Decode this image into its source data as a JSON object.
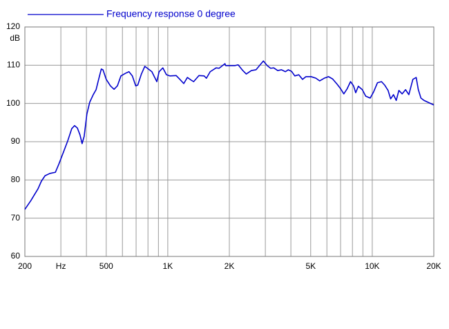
{
  "chart_data": {
    "type": "line",
    "y_label": "dB",
    "xscale": "log",
    "grid": true,
    "xlim": [
      200,
      20000
    ],
    "ylim": [
      60,
      120
    ],
    "yticks": [
      60,
      70,
      80,
      90,
      100,
      110,
      120
    ],
    "xticks": [
      200,
      {
        "value": 300,
        "label": "Hz"
      },
      500,
      {
        "value": 1000,
        "label": "1K"
      },
      {
        "value": 2000,
        "label": "2K"
      },
      {
        "value": 5000,
        "label": "5K"
      },
      {
        "value": 10000,
        "label": "10K"
      },
      {
        "value": 20000,
        "label": "20K"
      }
    ],
    "xgrid": [
      200,
      300,
      400,
      500,
      600,
      700,
      800,
      900,
      1000,
      2000,
      3000,
      4000,
      5000,
      6000,
      7000,
      8000,
      9000,
      10000,
      20000
    ],
    "series": [
      {
        "name": "Frequency response 0 degree",
        "color": "#0000cc",
        "x": [
          200,
          214,
          232,
          241,
          251,
          265,
          282,
          293,
          309,
          324,
          339,
          350,
          361,
          372,
          381,
          390,
          402,
          415,
          432,
          446,
          459,
          473,
          482,
          500,
          524,
          546,
          567,
          590,
          622,
          646,
          671,
          697,
          713,
          743,
          772,
          804,
          836,
          863,
          884,
          907,
          946,
          985,
          1026,
          1099,
          1146,
          1197,
          1247,
          1301,
          1338,
          1421,
          1505,
          1545,
          1612,
          1723,
          1782,
          1904,
          1919,
          2133,
          2208,
          2328,
          2420,
          2565,
          2700,
          2860,
          2935,
          3063,
          3182,
          3298,
          3447,
          3600,
          3760,
          3885,
          4030,
          4180,
          4370,
          4560,
          4740,
          5030,
          5300,
          5530,
          5820,
          6120,
          6400,
          6740,
          6990,
          7260,
          7530,
          7830,
          8100,
          8300,
          8550,
          8940,
          9290,
          9770,
          10150,
          10600,
          11100,
          11500,
          11950,
          12300,
          12700,
          13100,
          13500,
          14000,
          14550,
          15100,
          15800,
          16400,
          16800,
          17300,
          17900,
          20000
        ],
        "values": [
          72.3,
          74.6,
          77.7,
          79.7,
          81.1,
          81.7,
          82.0,
          84.1,
          87.3,
          90.2,
          93.4,
          94.2,
          93.6,
          91.8,
          89.5,
          91.4,
          97.2,
          100.3,
          102.3,
          103.6,
          106.3,
          109.0,
          108.8,
          106.3,
          104.6,
          103.7,
          104.6,
          107.2,
          107.9,
          108.3,
          107.2,
          104.6,
          104.8,
          107.7,
          109.7,
          109.0,
          108.3,
          106.8,
          105.7,
          108.3,
          109.3,
          107.5,
          107.2,
          107.3,
          106.3,
          105.2,
          106.8,
          106.1,
          105.7,
          107.3,
          107.2,
          106.6,
          108.3,
          109.3,
          109.2,
          110.4,
          109.9,
          109.9,
          110.1,
          108.6,
          107.7,
          108.6,
          108.8,
          110.4,
          111.1,
          109.9,
          109.2,
          109.3,
          108.6,
          108.8,
          108.3,
          108.8,
          108.4,
          107.2,
          107.5,
          106.3,
          107.0,
          107.0,
          106.6,
          105.9,
          106.6,
          107.0,
          106.4,
          105.0,
          103.9,
          102.5,
          103.8,
          105.7,
          104.6,
          102.8,
          104.5,
          103.6,
          101.9,
          101.4,
          103.0,
          105.4,
          105.7,
          104.8,
          103.4,
          101.2,
          102.3,
          100.8,
          103.4,
          102.5,
          103.6,
          102.3,
          106.3,
          106.8,
          103.6,
          101.4,
          100.8,
          99.6
        ]
      }
    ]
  }
}
